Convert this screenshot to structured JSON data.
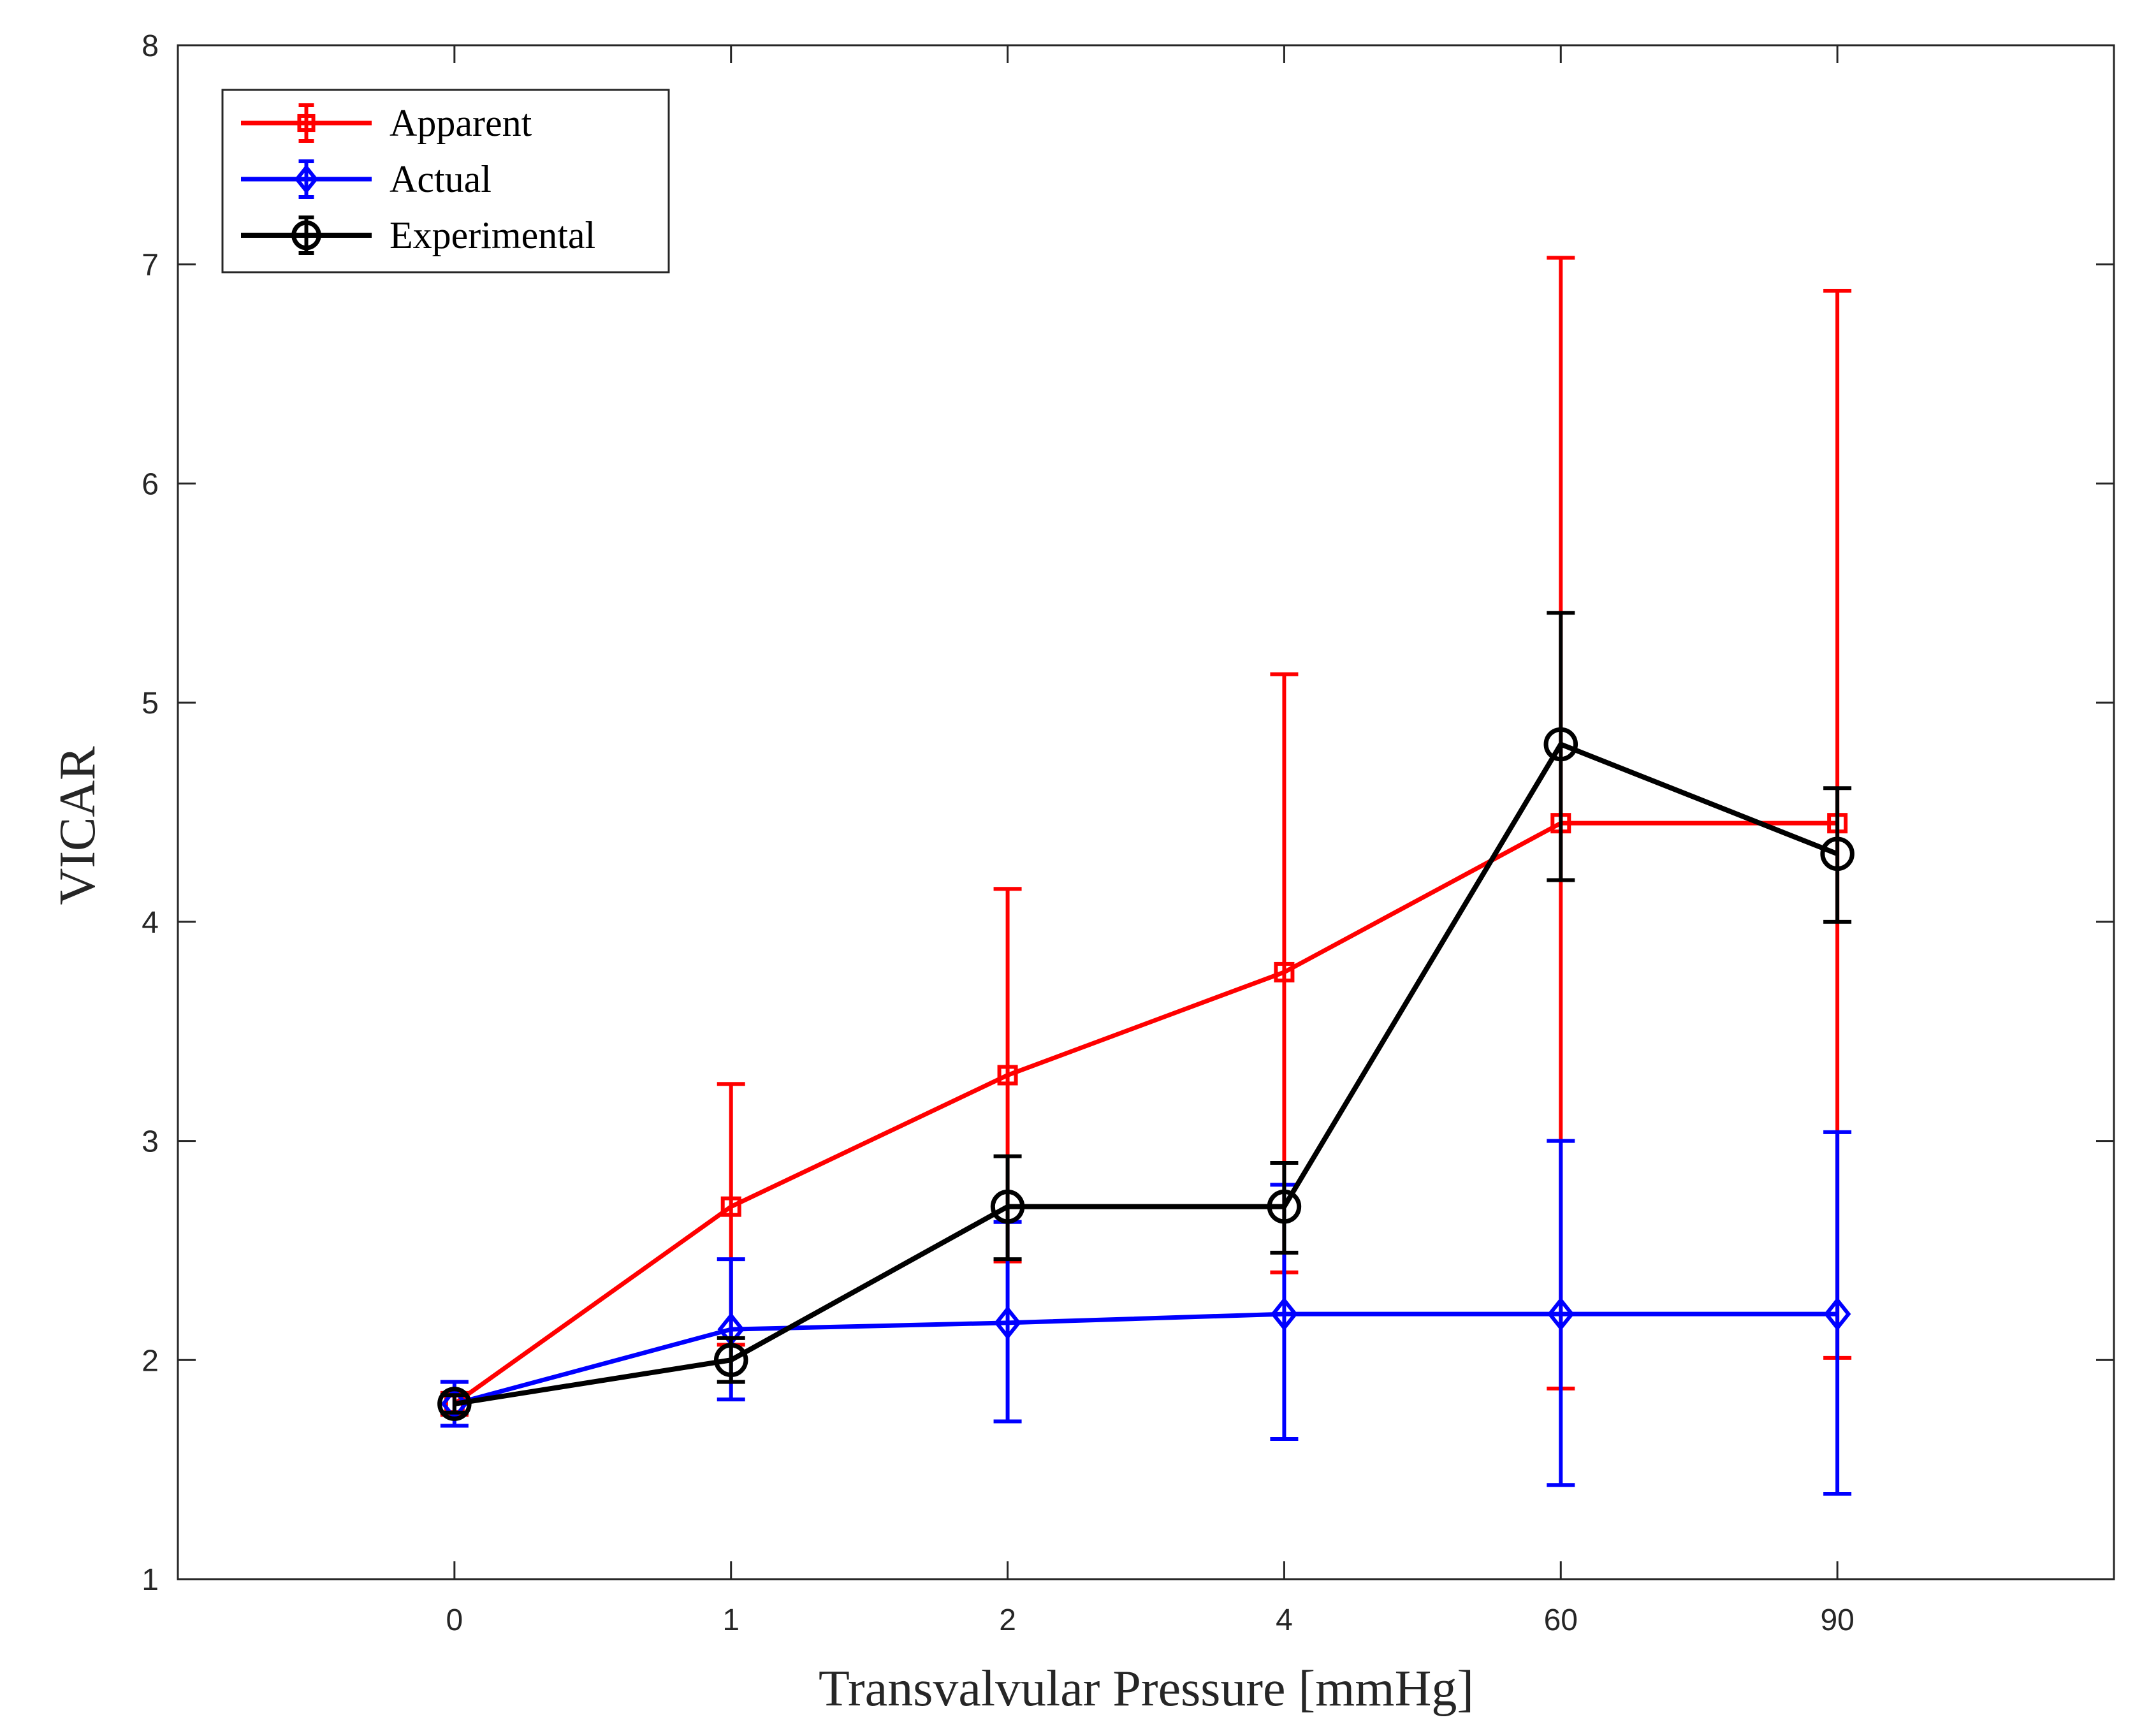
{
  "chart_data": {
    "type": "line",
    "title": "",
    "xlabel": "Transvalvular Pressure [mmHg]",
    "ylabel": "VICAR",
    "categories": [
      "0",
      "1",
      "2",
      "4",
      "60",
      "90"
    ],
    "xlim": [
      -1,
      6
    ],
    "ylim": [
      1,
      8
    ],
    "yticks": [
      "1",
      "2",
      "3",
      "4",
      "5",
      "6",
      "7",
      "8"
    ],
    "grid": false,
    "legend_position": "top-left",
    "series": [
      {
        "name": "Apparent",
        "color": "#ff0000",
        "marker": "square",
        "values": [
          1.8,
          2.7,
          3.3,
          3.77,
          4.45,
          4.45
        ],
        "err_low": [
          1.75,
          2.07,
          2.45,
          2.4,
          1.87,
          2.01
        ],
        "err_high": [
          1.85,
          3.26,
          4.15,
          5.13,
          7.03,
          6.88
        ]
      },
      {
        "name": "Actual",
        "color": "#0000ff",
        "marker": "diamond",
        "values": [
          1.8,
          2.14,
          2.17,
          2.21,
          2.21,
          2.21
        ],
        "err_low": [
          1.7,
          1.82,
          1.72,
          1.64,
          1.43,
          1.39
        ],
        "err_high": [
          1.9,
          2.46,
          2.63,
          2.8,
          3.0,
          3.04
        ]
      },
      {
        "name": "Experimental",
        "color": "#000000",
        "marker": "circle",
        "values": [
          1.8,
          2.0,
          2.7,
          2.7,
          4.81,
          4.31
        ],
        "err_low": [
          1.76,
          1.9,
          2.46,
          2.49,
          4.19,
          4.0
        ],
        "err_high": [
          1.84,
          2.1,
          2.93,
          2.9,
          5.41,
          4.61
        ]
      }
    ]
  }
}
